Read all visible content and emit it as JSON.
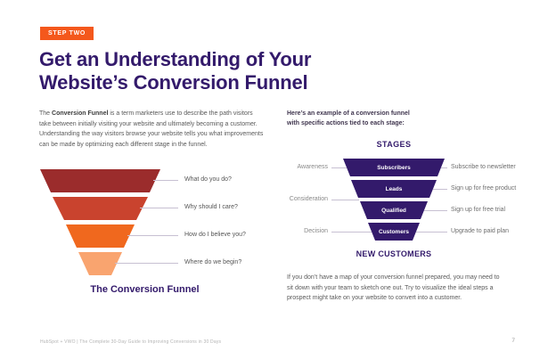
{
  "header": {
    "badge": "STEP TWO",
    "title_line1": "Get an Understanding of Your",
    "title_line2": "Website’s Conversion Funnel"
  },
  "left": {
    "intro_prefix": "The ",
    "intro_bold": "Conversion Funnel",
    "intro_rest": " is a term marketers use to describe the path visitors take between initially visiting your website and ultimately becoming a customer. Understanding the way visitors browse your website tells you what improvements can be made by optimizing each different stage in the funnel.",
    "funnel": {
      "questions": [
        "What do you do?",
        "Why should I care?",
        "How do I believe you?",
        "Where do we begin?"
      ],
      "segment_colors": [
        "#9B2C2C",
        "#C9432E",
        "#F0681E",
        "#F9A46F"
      ],
      "caption": "The Conversion Funnel"
    }
  },
  "right": {
    "intro_line1": "Here’s an example of a conversion funnel",
    "intro_line2": "with specific actions tied to each stage:",
    "stages_heading": "STAGES",
    "funnel_segments": [
      "Subscribers",
      "Leads",
      "Qualified",
      "Customers"
    ],
    "stage_labels": [
      "Awareness",
      "Consideration",
      "Decision"
    ],
    "action_labels": [
      "Subscribe to newsletter",
      "Sign up for free product",
      "Sign up for free trial",
      "Upgrade to paid plan"
    ],
    "new_customers_heading": "NEW CUSTOMERS",
    "outro": "If you don’t have a map of your conversion funnel prepared, you may need to sit down with your team to sketch one out. Try to visualize the ideal steps a prospect might take on your website to convert into a customer.",
    "funnel_color": "#331A6B"
  },
  "footer": {
    "credit": "HubSpot + VWO | The Complete 30-Day Guide to Improving Conversions in 30 Days",
    "page_number": "7"
  },
  "colors": {
    "brand_purple": "#331A6B",
    "badge_orange": "#F4581C",
    "connector_gray": "#C7C0D2",
    "body_text": "#5A5A5A"
  }
}
